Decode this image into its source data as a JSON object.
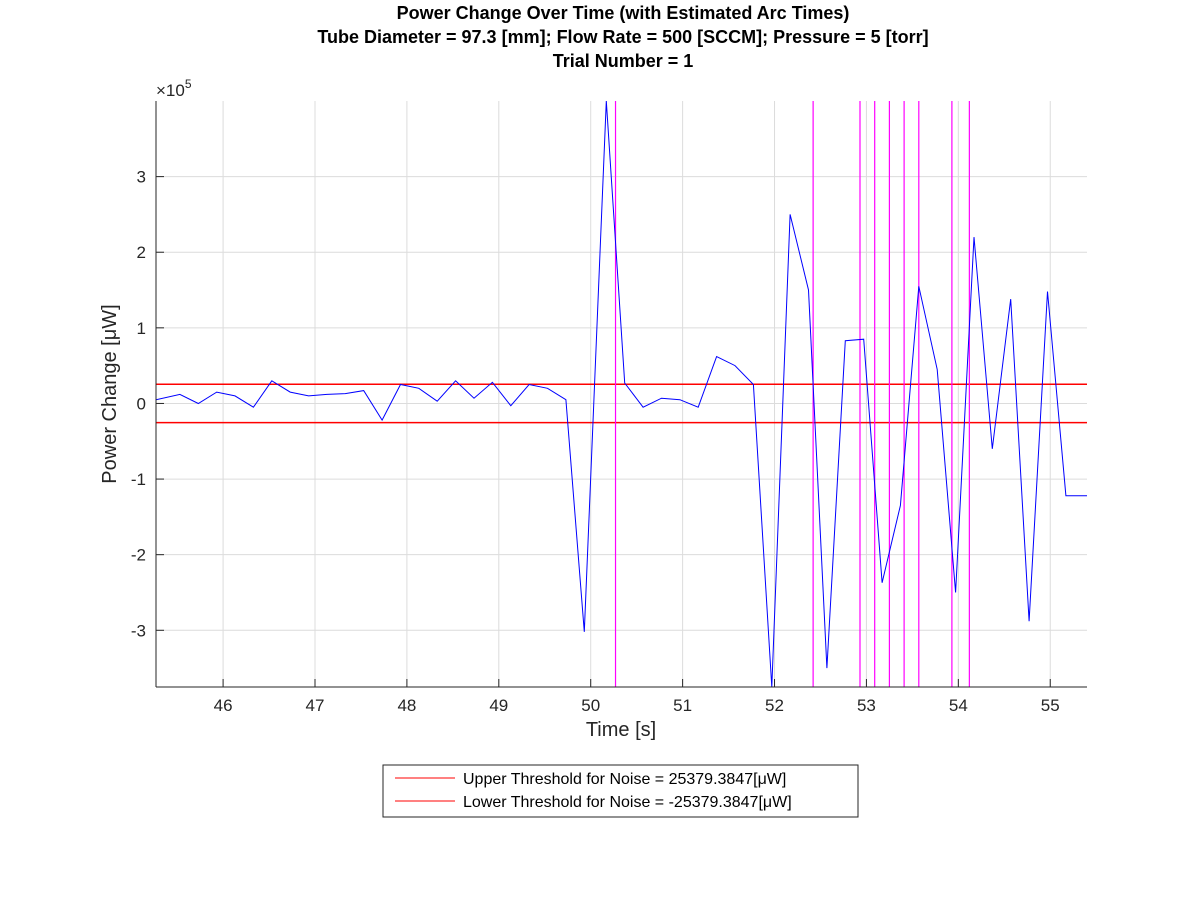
{
  "chart_data": {
    "type": "line",
    "title": [
      "Power Change Over Time (with Estimated Arc Times)",
      "Tube Diameter = 97.3 [mm]; Flow Rate = 500 [SCCM]; Pressure = 5 [torr]",
      "Trial Number = 1"
    ],
    "xlabel": "Time [s]",
    "ylabel": "Power Change [μW]",
    "y_exponent_label": "×10",
    "y_exponent_power": "5",
    "xlim": [
      45.27,
      55.4
    ],
    "ylim": [
      -3.75,
      4.0
    ],
    "y_scale_factor": 100000,
    "x_ticks": [
      46,
      47,
      48,
      49,
      50,
      51,
      52,
      53,
      54,
      55
    ],
    "y_ticks": [
      -3,
      -2,
      -1,
      0,
      1,
      2,
      3
    ],
    "grid": true,
    "legend_position": "bottom-center",
    "series": [
      {
        "color": "#0000ff",
        "x": [
          45.27,
          45.53,
          45.73,
          45.93,
          46.13,
          46.33,
          46.53,
          46.73,
          46.93,
          47.13,
          47.33,
          47.53,
          47.73,
          47.93,
          48.13,
          48.33,
          48.53,
          48.73,
          48.93,
          49.13,
          49.33,
          49.53,
          49.73,
          49.93,
          50.17,
          50.37,
          50.57,
          50.77,
          50.97,
          51.17,
          51.37,
          51.57,
          51.77,
          51.97,
          52.17,
          52.37,
          52.57,
          52.77,
          52.97,
          53.17,
          53.37,
          53.57,
          53.77,
          53.97,
          54.17,
          54.37,
          54.57,
          54.77,
          54.97,
          55.17,
          55.4
        ],
        "values": [
          0.05,
          0.12,
          0.0,
          0.15,
          0.1,
          -0.05,
          0.3,
          0.15,
          0.1,
          0.12,
          0.13,
          0.17,
          -0.22,
          0.25,
          0.2,
          0.03,
          0.3,
          0.07,
          0.28,
          -0.03,
          0.25,
          0.2,
          0.05,
          -3.02,
          4.0,
          0.27,
          -0.05,
          0.07,
          0.05,
          -0.05,
          0.62,
          0.5,
          0.25,
          -3.75,
          2.5,
          1.5,
          -3.5,
          0.83,
          0.85,
          -2.37,
          -1.35,
          1.55,
          0.45,
          -2.5,
          2.2,
          -0.6,
          1.38,
          -2.88,
          1.48,
          -1.22,
          -1.22
        ]
      }
    ],
    "threshold_lines": [
      {
        "name": "Upper Threshold for Noise = 25379.3847[μW]",
        "value": 25379.3847,
        "color": "#ff0000"
      },
      {
        "name": "Lower Threshold for Noise = -25379.3847[μW]",
        "value": -25379.3847,
        "color": "#ff0000"
      }
    ],
    "arc_times": {
      "color": "#ff00ff",
      "x": [
        50.27,
        52.42,
        52.93,
        53.09,
        53.25,
        53.41,
        53.57,
        53.93,
        54.12
      ]
    }
  }
}
